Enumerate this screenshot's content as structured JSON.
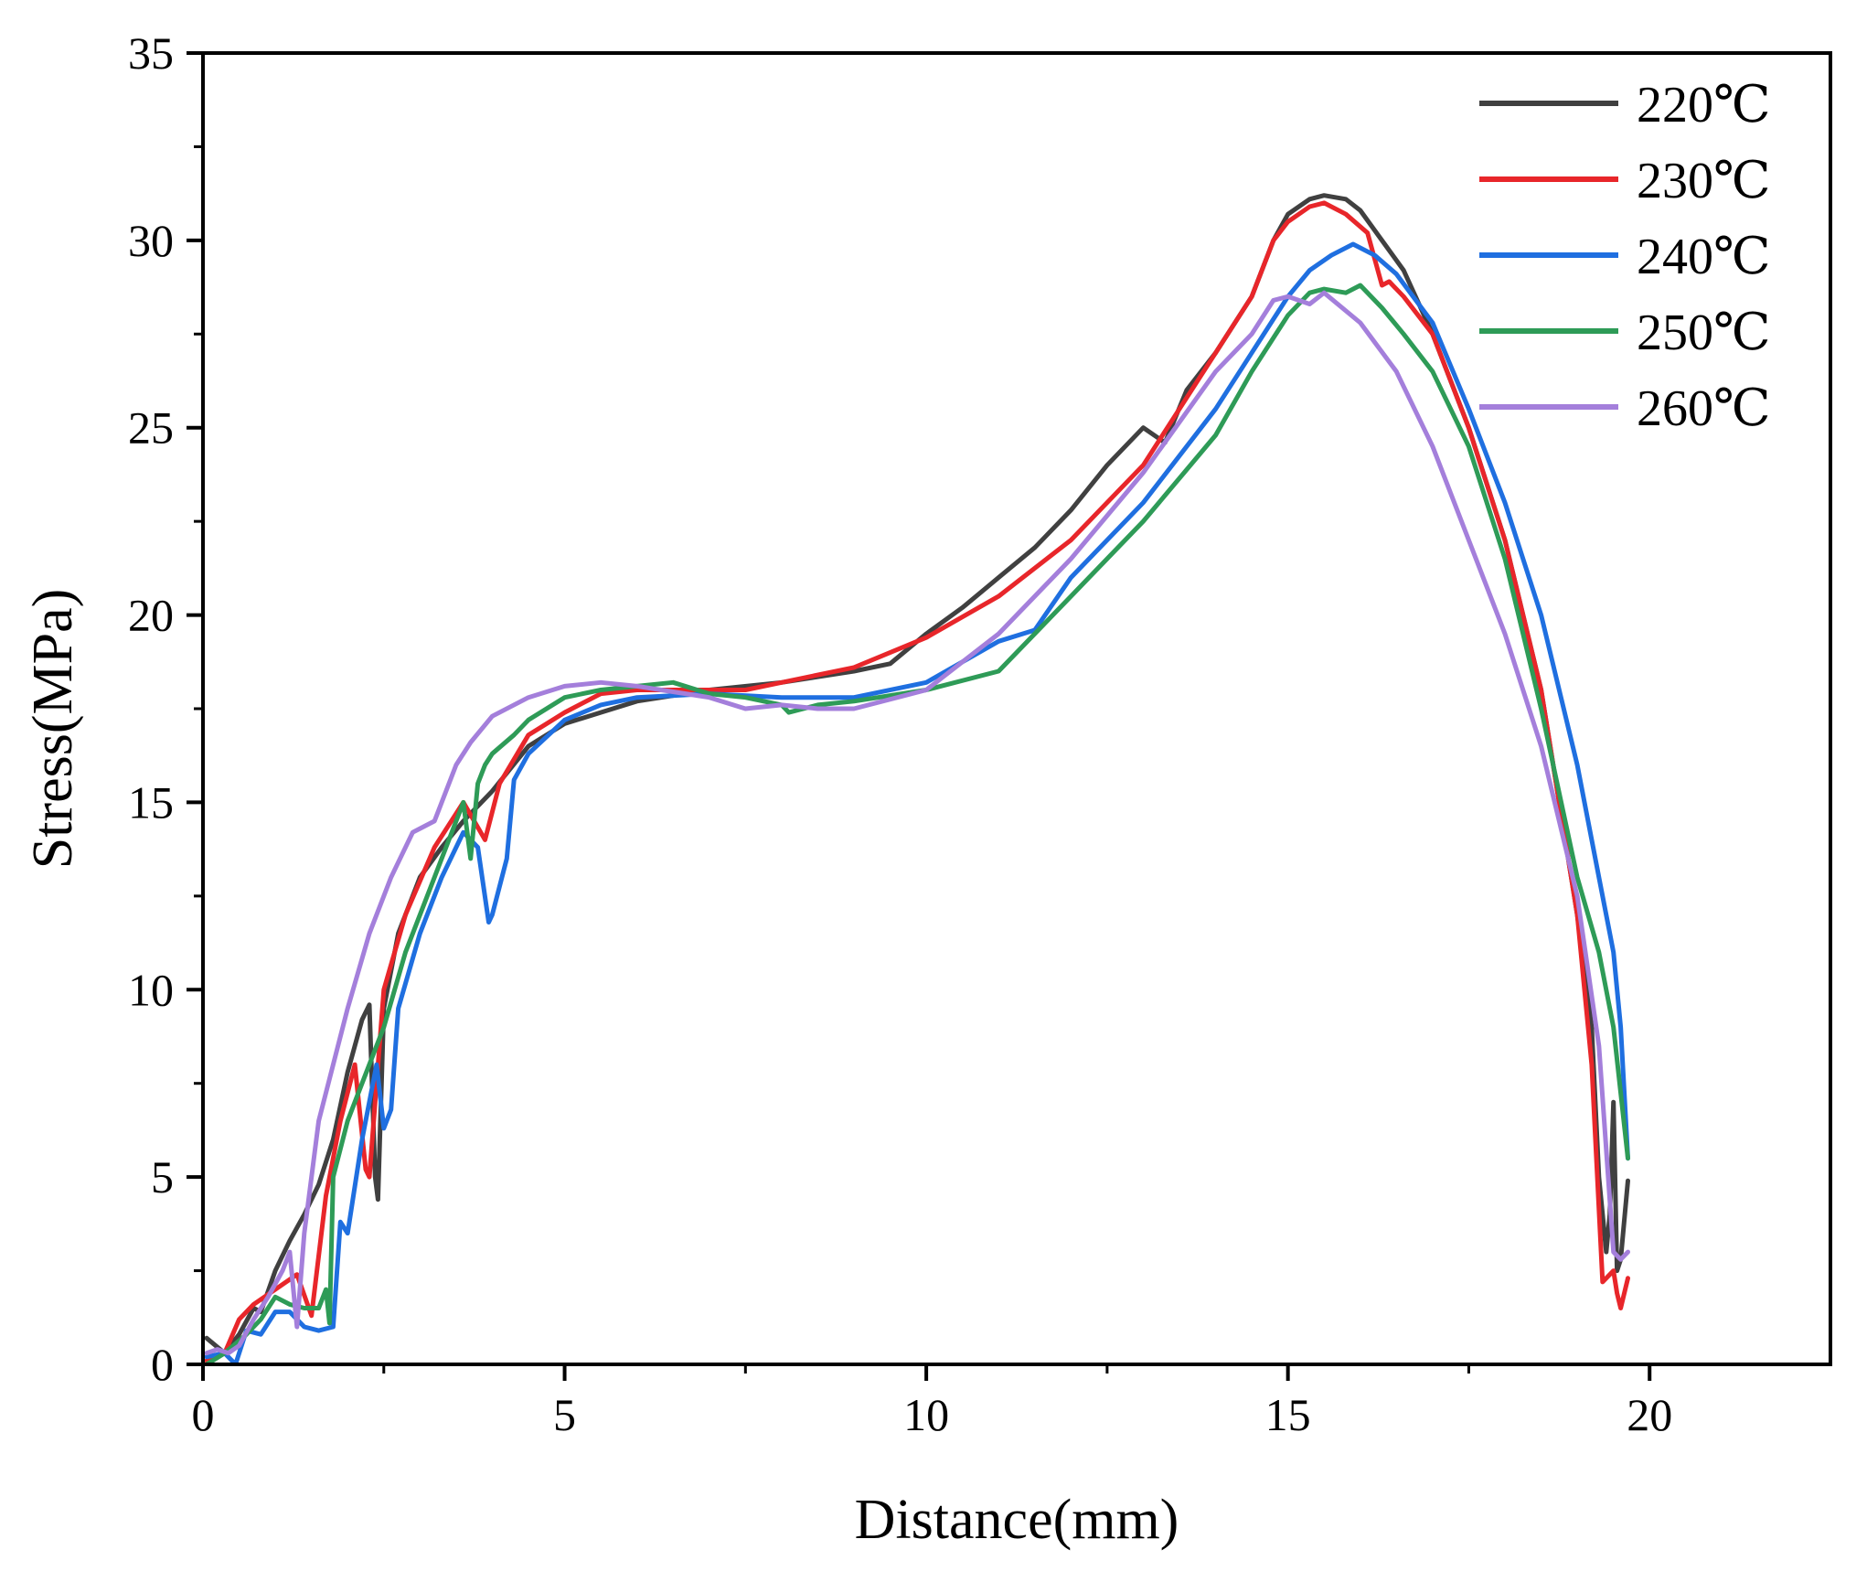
{
  "chart_data": {
    "type": "line",
    "title": "",
    "xlabel": "Distance(mm)",
    "ylabel": "Stress(MPa)",
    "xlim": [
      0,
      22.5
    ],
    "ylim": [
      0,
      35
    ],
    "x_ticks": [
      0,
      5,
      10,
      15,
      20
    ],
    "y_ticks": [
      0,
      5,
      10,
      15,
      20,
      25,
      30,
      35
    ],
    "x_tick_labels": [
      "0",
      "5",
      "10",
      "15",
      "20"
    ],
    "y_tick_labels": [
      "0",
      "5",
      "10",
      "15",
      "20",
      "25",
      "30",
      "35"
    ],
    "grid": false,
    "legend_position": "top-right",
    "series": [
      {
        "name": "220℃",
        "color": "#404040",
        "x": [
          0.05,
          0.3,
          0.5,
          0.7,
          0.8,
          1.0,
          1.2,
          1.4,
          1.6,
          1.8,
          2.0,
          2.2,
          2.3,
          2.38,
          2.42,
          2.5,
          2.7,
          3.0,
          3.3,
          3.6,
          4.0,
          4.5,
          5.0,
          5.5,
          6.0,
          7.0,
          8.0,
          9.0,
          9.5,
          10.0,
          10.5,
          11.0,
          11.5,
          12.0,
          12.5,
          13.0,
          13.3,
          13.6,
          14.0,
          14.5,
          14.8,
          15.0,
          15.3,
          15.5,
          15.8,
          16.0,
          16.3,
          16.6,
          17.0,
          17.5,
          18.0,
          18.5,
          19.0,
          19.2,
          19.3,
          19.4,
          19.45,
          19.5,
          19.55,
          19.6,
          19.7
        ],
        "y": [
          0.7,
          0.3,
          0.8,
          1.5,
          1.4,
          2.5,
          3.3,
          4.0,
          4.8,
          6.0,
          7.8,
          9.2,
          9.6,
          5.0,
          4.4,
          9.5,
          11.5,
          13.0,
          13.8,
          14.5,
          15.3,
          16.5,
          17.1,
          17.4,
          17.7,
          18.0,
          18.2,
          18.5,
          18.7,
          19.5,
          20.2,
          21.0,
          21.8,
          22.8,
          24.0,
          25.0,
          24.6,
          26.0,
          27.0,
          28.5,
          30.0,
          30.7,
          31.1,
          31.2,
          31.1,
          30.8,
          30.0,
          29.2,
          27.5,
          25.0,
          22.0,
          18.0,
          12.0,
          9.0,
          5.0,
          3.0,
          4.0,
          7.0,
          2.5,
          2.8,
          4.9
        ]
      },
      {
        "name": "230℃",
        "color": "#e8262a",
        "x": [
          0.05,
          0.3,
          0.5,
          0.7,
          1.0,
          1.3,
          1.5,
          1.7,
          1.9,
          2.1,
          2.25,
          2.3,
          2.5,
          2.8,
          3.2,
          3.6,
          3.9,
          4.1,
          4.5,
          5.0,
          5.5,
          6.0,
          7.0,
          7.5,
          8.0,
          9.0,
          10.0,
          11.0,
          12.0,
          13.0,
          13.5,
          14.0,
          14.5,
          14.8,
          15.0,
          15.3,
          15.5,
          15.8,
          16.1,
          16.3,
          16.4,
          16.6,
          17.0,
          17.5,
          18.0,
          18.5,
          19.0,
          19.2,
          19.35,
          19.5,
          19.55,
          19.6,
          19.7
        ],
        "y": [
          0.1,
          0.3,
          1.2,
          1.6,
          2.0,
          2.4,
          1.3,
          4.5,
          6.5,
          8.0,
          5.2,
          5.0,
          10.0,
          12.0,
          13.8,
          15.0,
          14.0,
          15.5,
          16.8,
          17.4,
          17.9,
          18.0,
          18.0,
          18.0,
          18.2,
          18.6,
          19.4,
          20.5,
          22.0,
          24.0,
          25.5,
          27.0,
          28.5,
          30.0,
          30.5,
          30.9,
          31.0,
          30.7,
          30.2,
          28.8,
          28.9,
          28.5,
          27.5,
          25.0,
          22.0,
          18.0,
          12.0,
          8.0,
          2.2,
          2.5,
          1.9,
          1.5,
          2.3
        ]
      },
      {
        "name": "240℃",
        "color": "#1f6fe0",
        "x": [
          0.05,
          0.3,
          0.45,
          0.6,
          0.8,
          1.0,
          1.2,
          1.4,
          1.6,
          1.8,
          1.9,
          2.0,
          2.2,
          2.4,
          2.5,
          2.6,
          2.7,
          3.0,
          3.3,
          3.6,
          3.8,
          3.95,
          4.0,
          4.2,
          4.3,
          4.5,
          5.0,
          5.5,
          6.0,
          7.0,
          8.0,
          9.0,
          10.0,
          11.0,
          11.5,
          12.0,
          13.0,
          14.0,
          14.5,
          15.0,
          15.3,
          15.6,
          15.9,
          16.2,
          16.5,
          17.0,
          17.5,
          18.0,
          18.5,
          19.0,
          19.3,
          19.5,
          19.6,
          19.7
        ],
        "y": [
          0.2,
          0.3,
          0.0,
          0.9,
          0.8,
          1.4,
          1.4,
          1.0,
          0.9,
          1.0,
          3.8,
          3.5,
          6.0,
          8.0,
          6.3,
          6.8,
          9.5,
          11.5,
          13.0,
          14.2,
          13.8,
          11.8,
          12.0,
          13.5,
          15.6,
          16.3,
          17.2,
          17.6,
          17.8,
          17.9,
          17.8,
          17.8,
          18.2,
          19.3,
          19.6,
          21.0,
          23.0,
          25.5,
          27.0,
          28.5,
          29.2,
          29.6,
          29.9,
          29.6,
          29.1,
          27.8,
          25.5,
          23.0,
          20.0,
          16.0,
          13.0,
          11.0,
          9.0,
          5.5
        ]
      },
      {
        "name": "250℃",
        "color": "#2e9b57",
        "x": [
          0.05,
          0.3,
          0.6,
          0.8,
          1.0,
          1.2,
          1.4,
          1.6,
          1.7,
          1.75,
          1.8,
          2.0,
          2.2,
          2.5,
          2.8,
          3.2,
          3.5,
          3.6,
          3.7,
          3.8,
          3.9,
          4.0,
          4.3,
          4.5,
          5.0,
          5.5,
          6.0,
          6.5,
          7.0,
          7.5,
          8.0,
          8.1,
          8.5,
          9.0,
          10.0,
          11.0,
          12.0,
          13.0,
          14.0,
          14.5,
          15.0,
          15.3,
          15.5,
          15.8,
          16.0,
          16.3,
          16.6,
          17.0,
          17.5,
          18.0,
          18.5,
          19.0,
          19.3,
          19.5,
          19.7
        ],
        "y": [
          0.0,
          0.3,
          0.8,
          1.2,
          1.8,
          1.6,
          1.5,
          1.5,
          2.0,
          1.1,
          5.0,
          6.5,
          7.5,
          9.0,
          11.0,
          13.0,
          14.5,
          15.0,
          13.5,
          15.5,
          16.0,
          16.3,
          16.8,
          17.2,
          17.8,
          18.0,
          18.1,
          18.2,
          17.9,
          17.8,
          17.6,
          17.4,
          17.6,
          17.7,
          18.0,
          18.5,
          20.5,
          22.5,
          24.8,
          26.5,
          28.0,
          28.6,
          28.7,
          28.6,
          28.8,
          28.2,
          27.5,
          26.5,
          24.5,
          21.5,
          17.5,
          13.0,
          11.0,
          9.0,
          5.5
        ]
      },
      {
        "name": "260℃",
        "color": "#a47fdb",
        "x": [
          0.05,
          0.2,
          0.35,
          0.5,
          0.7,
          0.9,
          1.1,
          1.2,
          1.3,
          1.4,
          1.6,
          1.8,
          2.0,
          2.3,
          2.6,
          2.9,
          3.0,
          3.2,
          3.5,
          3.7,
          4.0,
          4.5,
          5.0,
          5.5,
          6.0,
          7.0,
          7.5,
          8.0,
          8.5,
          9.0,
          10.0,
          11.0,
          12.0,
          13.0,
          14.0,
          14.5,
          14.8,
          15.0,
          15.3,
          15.5,
          16.0,
          16.5,
          17.0,
          17.5,
          18.0,
          18.5,
          19.0,
          19.3,
          19.5,
          19.6,
          19.7
        ],
        "y": [
          0.3,
          0.4,
          0.3,
          0.5,
          1.2,
          1.8,
          2.5,
          3.0,
          1.0,
          3.5,
          6.5,
          8.0,
          9.5,
          11.5,
          13.0,
          14.2,
          14.3,
          14.5,
          16.0,
          16.6,
          17.3,
          17.8,
          18.1,
          18.2,
          18.1,
          17.8,
          17.5,
          17.6,
          17.5,
          17.5,
          18.0,
          19.5,
          21.5,
          23.8,
          26.5,
          27.5,
          28.4,
          28.5,
          28.3,
          28.6,
          27.8,
          26.5,
          24.5,
          22.0,
          19.5,
          16.5,
          12.5,
          8.5,
          3.0,
          2.8,
          3.0
        ]
      }
    ]
  }
}
